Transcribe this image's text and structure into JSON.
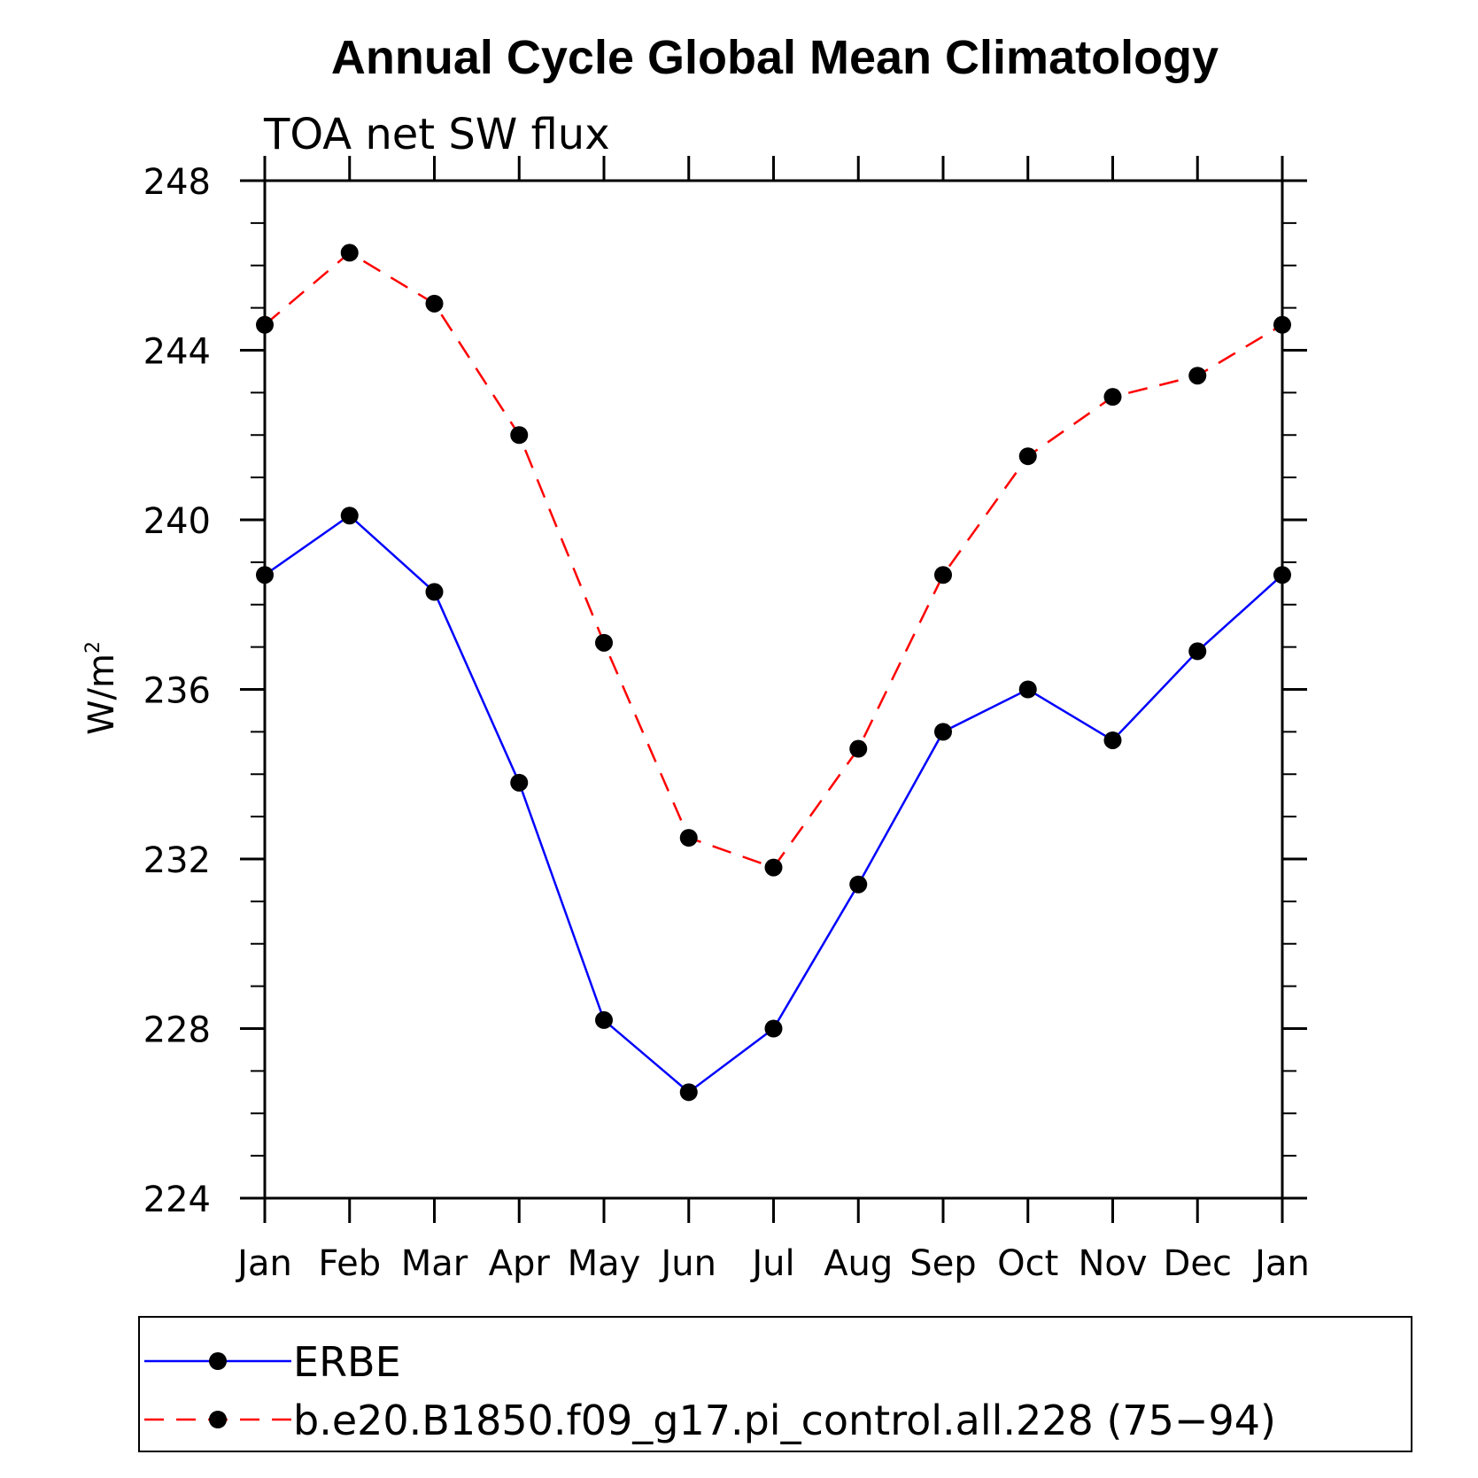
{
  "chart_data": {
    "type": "line",
    "title": "Annual Cycle Global Mean Climatology",
    "subtitle": "TOA net SW flux",
    "ylabel_base": "W/m",
    "ylabel_sup": "2",
    "categories": [
      "Jan",
      "Feb",
      "Mar",
      "Apr",
      "May",
      "Jun",
      "Jul",
      "Aug",
      "Sep",
      "Oct",
      "Nov",
      "Dec",
      "Jan"
    ],
    "ylim": [
      224,
      248
    ],
    "yticks": [
      224,
      228,
      232,
      236,
      240,
      244,
      248
    ],
    "yticks_text": [
      "224",
      "228",
      "232",
      "236",
      "240",
      "244",
      "248"
    ],
    "series": [
      {
        "name": "ERBE",
        "color": "#0000ff",
        "dash": "solid",
        "marker": "filled-circle",
        "values": [
          238.7,
          240.1,
          238.3,
          233.8,
          228.2,
          226.5,
          228.0,
          231.4,
          235.0,
          236.0,
          234.8,
          236.9,
          238.7
        ]
      },
      {
        "name": "b.e20.B1850.f09_g17.pi_control.all.228 (75−94)",
        "color": "#ff0000",
        "dash": "dashed",
        "marker": "filled-circle",
        "values": [
          244.6,
          246.3,
          245.1,
          242.0,
          237.1,
          232.5,
          231.8,
          234.6,
          238.7,
          241.5,
          242.9,
          243.4,
          244.6
        ]
      }
    ],
    "grid": false,
    "legend_position": "bottom"
  }
}
